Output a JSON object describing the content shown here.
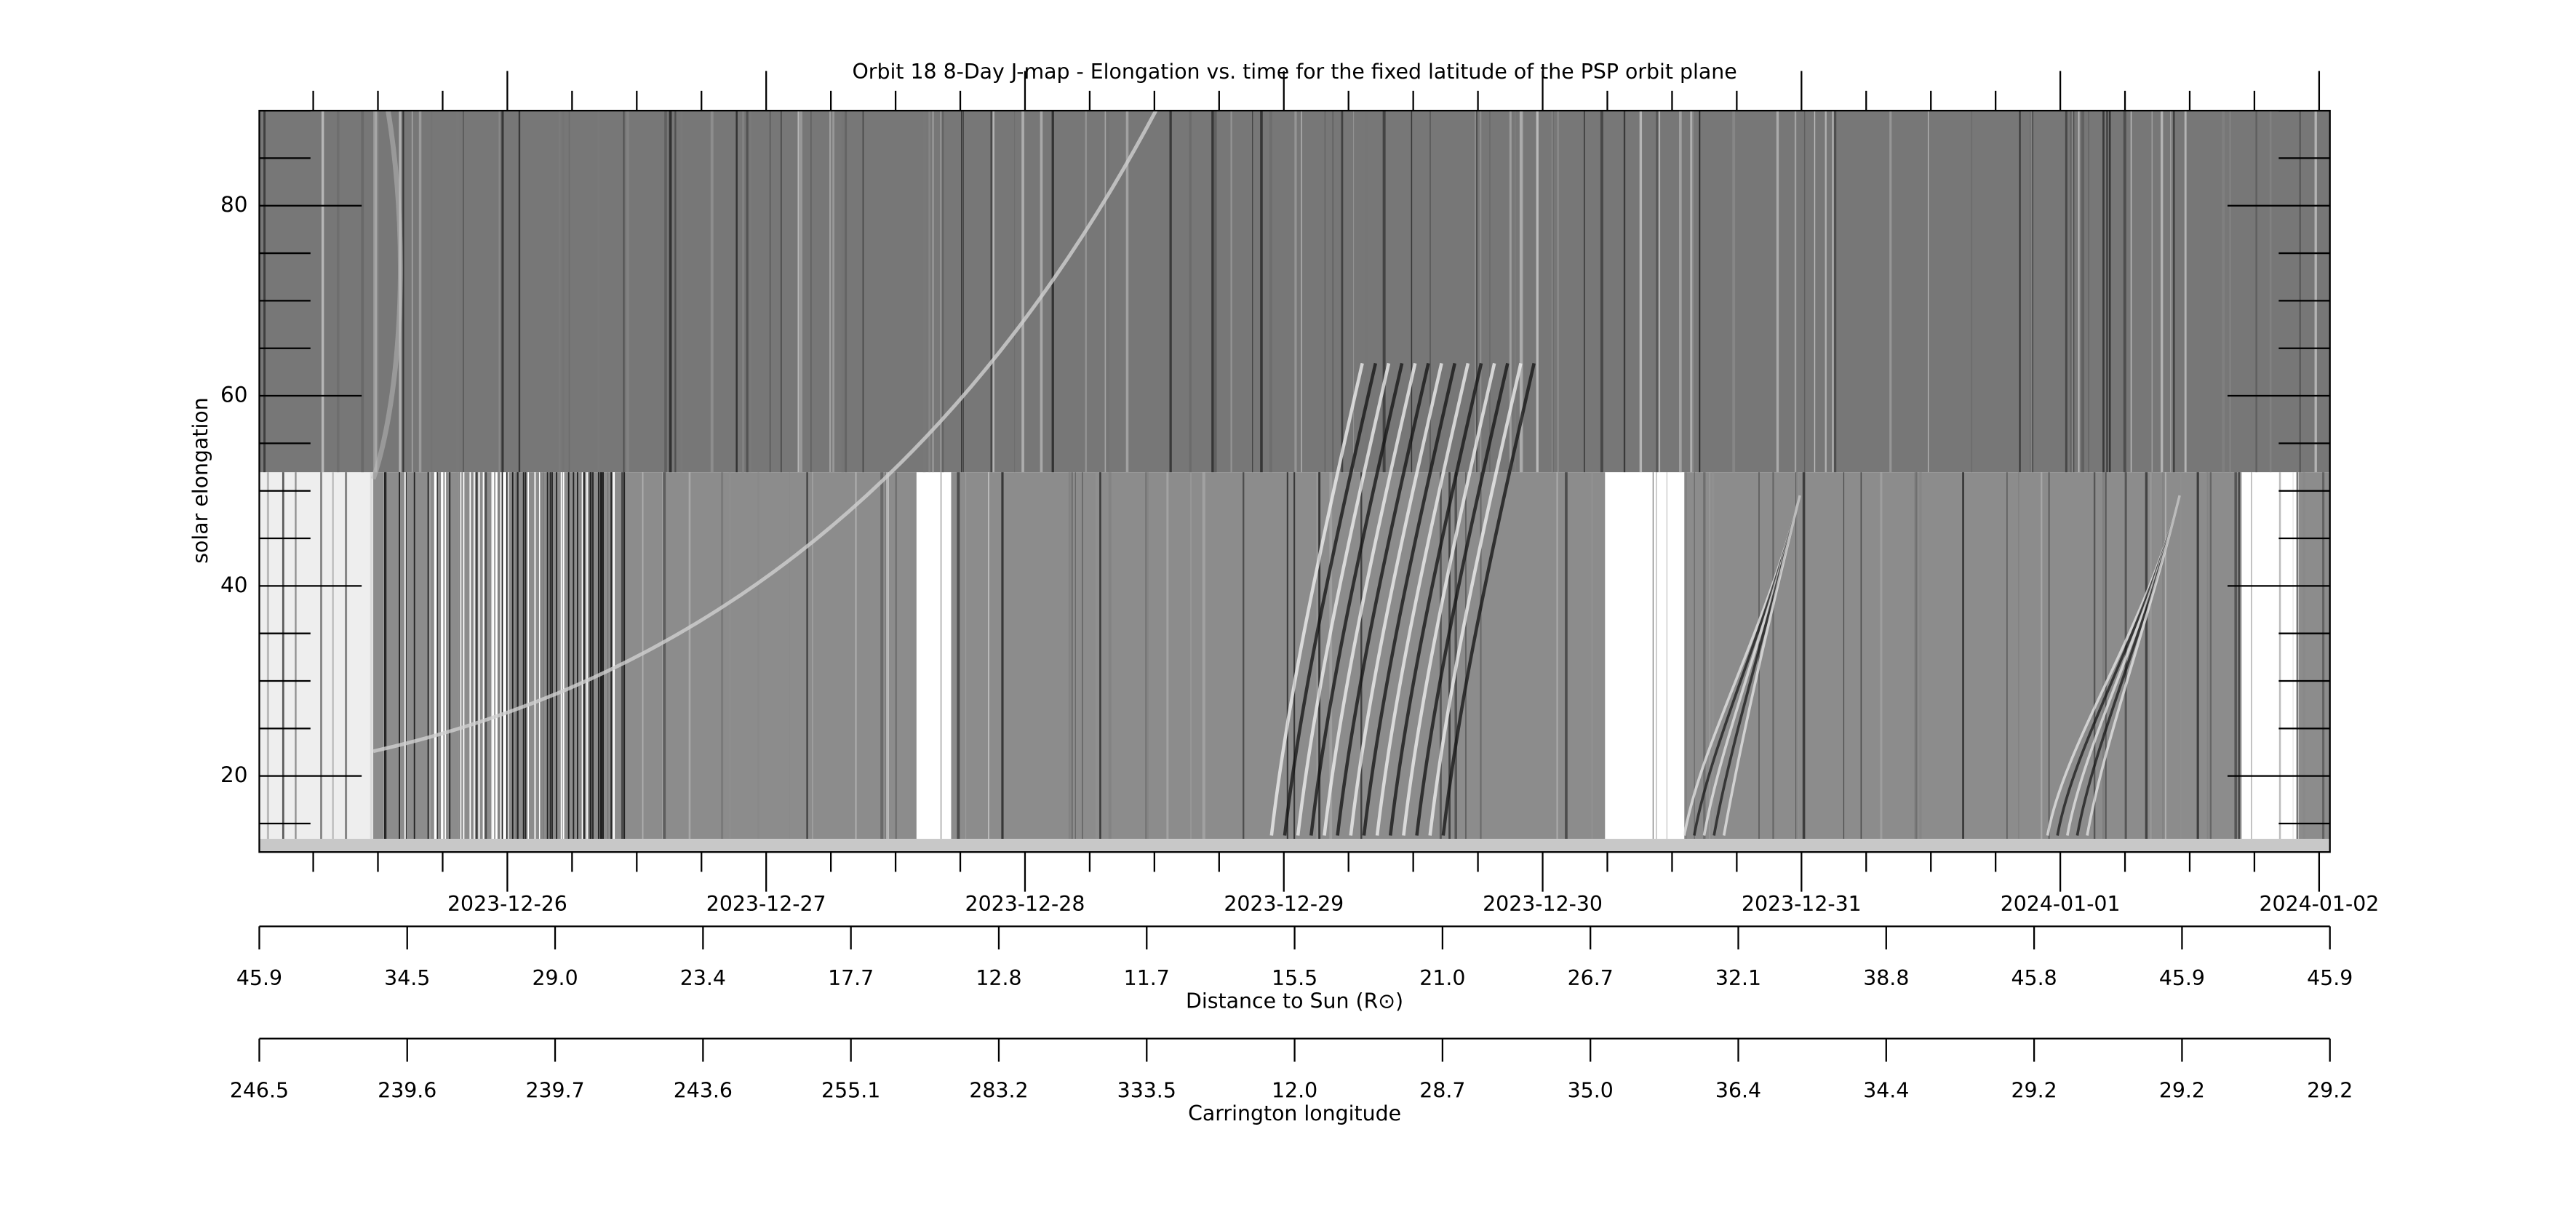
{
  "chart_data": {
    "type": "heatmap",
    "title": "Orbit 18 8-Day J-map - Elongation vs. time for the fixed latitude of the PSP orbit plane",
    "ylabel": "solar elongation",
    "ylim": [
      12,
      90
    ],
    "yticks": [
      20,
      40,
      60,
      80
    ],
    "yminor_step": 5,
    "xlim": [
      "2023-12-25T01:00:00Z",
      "2024-01-02T01:00:00Z"
    ],
    "xticks": [
      "2023-12-26",
      "2023-12-27",
      "2023-12-28",
      "2023-12-29",
      "2023-12-30",
      "2023-12-31",
      "2024-01-01",
      "2024-01-02"
    ],
    "xminor_step_hours": 6,
    "colormap": "gray",
    "secondary_axes": [
      {
        "label": "Distance to Sun (R⊙)",
        "ticks": [
          45.9,
          34.5,
          {
            "value": 29,
            "label": "29.0"
          },
          23.4,
          17.7,
          12.8,
          11.7,
          15.5,
          {
            "value": 21,
            "label": "21.0"
          },
          26.7,
          32.1,
          38.8,
          45.8,
          45.9,
          45.9
        ]
      },
      {
        "label": "Carrington longitude",
        "ticks": [
          246.5,
          239.6,
          239.7,
          243.6,
          255.1,
          283.2,
          333.5,
          {
            "value": 12,
            "label": "12.0"
          },
          28.7,
          {
            "value": 35,
            "label": "35.0"
          },
          36.4,
          34.4,
          29.2,
          29.2,
          29.2
        ]
      }
    ]
  }
}
